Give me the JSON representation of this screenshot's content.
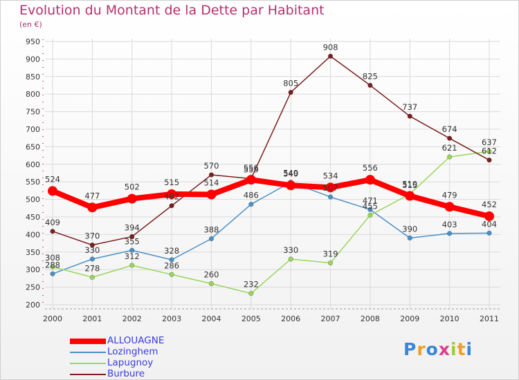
{
  "title": "Evolution du Montant de la Dette par Habitant",
  "unit": "(en €)",
  "logo": {
    "text": "Proxiti",
    "colors": [
      "#3a86d6",
      "#f0a020",
      "#3a86d6",
      "#e03c8c",
      "#9acd32",
      "#f0a020",
      "#3a86d6"
    ]
  },
  "chart_data": {
    "type": "line",
    "x": [
      "2000",
      "2001",
      "2002",
      "2003",
      "2004",
      "2005",
      "2006",
      "2007",
      "2008",
      "2009",
      "2010",
      "2011"
    ],
    "ylim": [
      200,
      950
    ],
    "yticks": [
      200,
      250,
      300,
      350,
      400,
      450,
      500,
      550,
      600,
      650,
      700,
      750,
      800,
      850,
      900,
      950
    ],
    "grid": true,
    "legend_position": "bottom-left",
    "series": [
      {
        "name": "ALLOUAGNE",
        "color": "#ff0000",
        "emphasis": true,
        "values": [
          524,
          477,
          502,
          515,
          514,
          556,
          540,
          534,
          556,
          510,
          479,
          452
        ]
      },
      {
        "name": "Lozinghem",
        "color": "#4a90c8",
        "values": [
          288,
          330,
          355,
          328,
          388,
          486,
          549,
          507,
          471,
          390,
          403,
          404
        ]
      },
      {
        "name": "Lapugnoy",
        "color": "#99d65c",
        "values": [
          308,
          278,
          312,
          286,
          260,
          232,
          330,
          319,
          455,
          515,
          621,
          637
        ]
      },
      {
        "name": "Burbure",
        "color": "#7a1e1e",
        "values": [
          409,
          370,
          394,
          482,
          570,
          559,
          805,
          908,
          825,
          737,
          674,
          612
        ]
      }
    ]
  }
}
